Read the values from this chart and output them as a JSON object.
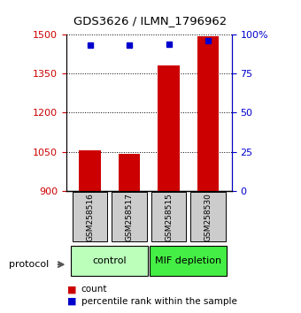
{
  "title": "GDS3626 / ILMN_1796962",
  "samples": [
    "GSM258516",
    "GSM258517",
    "GSM258515",
    "GSM258530"
  ],
  "counts": [
    1055,
    1042,
    1382,
    1492
  ],
  "percentile_ranks": [
    93,
    93,
    94,
    96
  ],
  "groups": [
    {
      "label": "control",
      "samples": [
        0,
        1
      ],
      "color": "#bbffbb"
    },
    {
      "label": "MIF depletion",
      "samples": [
        2,
        3
      ],
      "color": "#44ee44"
    }
  ],
  "ylim_left": [
    900,
    1500
  ],
  "yticks_left": [
    900,
    1050,
    1200,
    1350,
    1500
  ],
  "ylim_right": [
    0,
    100
  ],
  "yticks_right": [
    0,
    25,
    50,
    75,
    100
  ],
  "bar_color": "#cc0000",
  "dot_color": "#0000cc",
  "bar_width": 0.55,
  "protocol_label": "protocol",
  "legend_items": [
    {
      "label": "count",
      "color": "#cc0000"
    },
    {
      "label": "percentile rank within the sample",
      "color": "#0000cc"
    }
  ]
}
